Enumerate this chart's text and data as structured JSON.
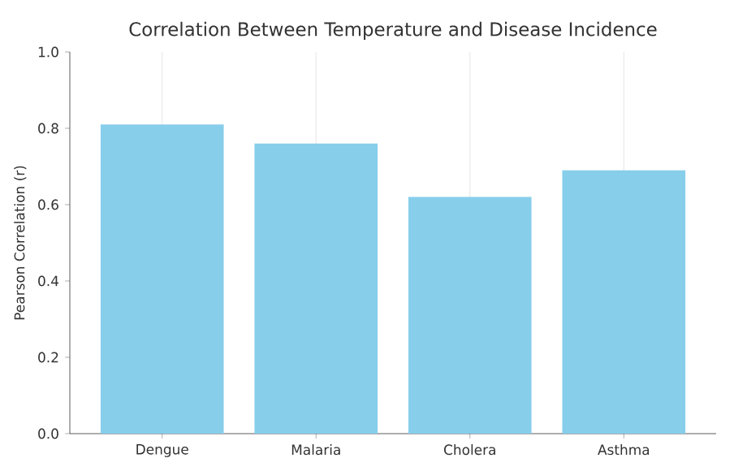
{
  "chart_data": {
    "type": "bar",
    "title": "Correlation Between Temperature and Disease Incidence",
    "ylabel": "Pearson Correlation (r)",
    "categories": [
      "Dengue",
      "Malaria",
      "Cholera",
      "Asthma"
    ],
    "values": [
      0.81,
      0.76,
      0.62,
      0.69
    ],
    "color": "#87ceeb",
    "ylim": [
      0,
      1
    ],
    "yticks": [
      {
        "value": 0,
        "label": "0.0"
      },
      0.2,
      0.4,
      0.6,
      0.8,
      {
        "value": 1,
        "label": "1.0"
      }
    ],
    "grid": "x"
  }
}
